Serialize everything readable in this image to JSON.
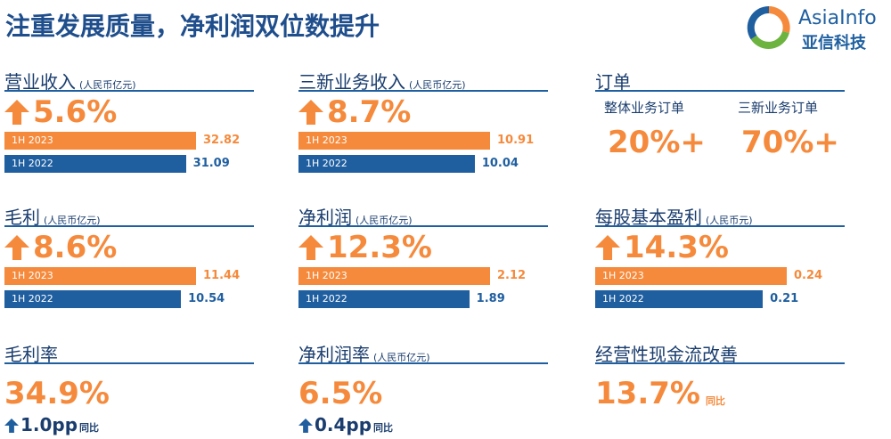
{
  "header": {
    "title": "注重发展质量，净利润双位数提升",
    "logo": "AsiaInfo",
    "logo_sub": "亚信科技"
  },
  "panels": [
    {
      "title": "营业收入",
      "unit": "(人民币亿元)",
      "growth": "5.6%",
      "bars": [
        {
          "label": "1H 2023",
          "value": 32.82
        },
        {
          "label": "1H 2022",
          "value": 31.09
        }
      ]
    },
    {
      "title": "三新业务收入",
      "unit": "(人民币亿元)",
      "growth": "8.7%",
      "bars": [
        {
          "label": "1H 2023",
          "value": 10.91
        },
        {
          "label": "1H 2022",
          "value": 10.04
        }
      ]
    },
    {
      "title": "订单",
      "items": [
        {
          "label": "整体业务订单",
          "value": "20%+"
        },
        {
          "label": "三新业务订单",
          "value": "70%+"
        }
      ]
    },
    {
      "title": "毛利",
      "unit": "(人民币亿元)",
      "growth": "8.6%",
      "bars": [
        {
          "label": "1H 2023",
          "value": 11.44
        },
        {
          "label": "1H 2022",
          "value": 10.54
        }
      ]
    },
    {
      "title": "净利润",
      "unit": "(人民币亿元)",
      "growth": "12.3%",
      "bars": [
        {
          "label": "1H 2023",
          "value": 2.12
        },
        {
          "label": "1H 2022",
          "value": 1.89
        }
      ]
    },
    {
      "title": "每股基本盈利",
      "unit": "(人民币元)",
      "growth": "14.3%",
      "bars": [
        {
          "label": "1H 2023",
          "value": 0.24
        },
        {
          "label": "1H 2022",
          "value": 0.21
        }
      ]
    },
    {
      "title": "毛利率",
      "big": "34.9%",
      "change": "1.0pp",
      "note": "同比"
    },
    {
      "title": "净利润率",
      "unit": "(人民币亿元)",
      "big": "6.5%",
      "change": "0.4pp",
      "note": "同比"
    },
    {
      "title": "经营性现金流改善",
      "big": "13.7%",
      "note": "同比"
    }
  ]
}
